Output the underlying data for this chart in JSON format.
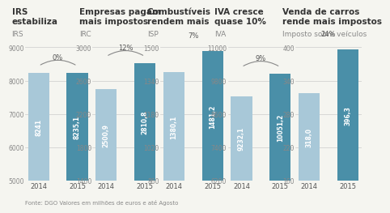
{
  "charts": [
    {
      "title": "IRS\nestabiliza",
      "subtitle": "IRS",
      "values": [
        8241,
        8235.1
      ],
      "labels": [
        "8241",
        "8235,1"
      ],
      "years": [
        "2014",
        "2015"
      ],
      "pct": "0%",
      "ylim": [
        5000,
        9000
      ],
      "yticks": [
        5000,
        6000,
        7000,
        8000,
        9000
      ]
    },
    {
      "title": "Empresas pagam\nmais impostos",
      "subtitle": "IRC",
      "values": [
        2500.9,
        2810.8
      ],
      "labels": [
        "2500,9",
        "2810,8"
      ],
      "years": [
        "2014",
        "2015"
      ],
      "pct": "12%",
      "ylim": [
        1400,
        3000
      ],
      "yticks": [
        1400,
        1800,
        2200,
        2600,
        3000
      ]
    },
    {
      "title": "Combustíveis\nrendem mais",
      "subtitle": "ISP",
      "values": [
        1380.1,
        1481.2
      ],
      "labels": [
        "1380,1",
        "1481,2"
      ],
      "years": [
        "2014",
        "2015"
      ],
      "pct": "7%",
      "ylim": [
        860,
        1500
      ],
      "yticks": [
        860,
        1020,
        1180,
        1340,
        1500
      ]
    },
    {
      "title": "IVA cresce\nquase 10%",
      "subtitle": "IVA",
      "values": [
        9232.1,
        10051.2
      ],
      "labels": [
        "9232,1",
        "10051,2"
      ],
      "years": [
        "2014",
        "2015"
      ],
      "pct": "9%",
      "ylim": [
        6200,
        11000
      ],
      "yticks": [
        6200,
        7400,
        8600,
        9800,
        11000
      ]
    },
    {
      "title": "Venda de carros\nrende mais impostos",
      "subtitle": "Imposto sobre veículos",
      "values": [
        318.0,
        396.3
      ],
      "labels": [
        "318,0",
        "396,3"
      ],
      "years": [
        "2014",
        "2015"
      ],
      "pct": "24%",
      "ylim": [
        160,
        400
      ],
      "yticks": [
        160,
        220,
        280,
        340,
        400
      ]
    }
  ],
  "color_2014": "#a8c8d8",
  "color_2015": "#4a8fa8",
  "title_fontsize": 7.5,
  "subtitle_fontsize": 6.5,
  "label_fontsize": 5.5,
  "tick_fontsize": 5.5,
  "year_fontsize": 6.0,
  "footer": "Fonte: DGO Valores em milhões de euros e até Agosto",
  "background_color": "#f5f5f0"
}
